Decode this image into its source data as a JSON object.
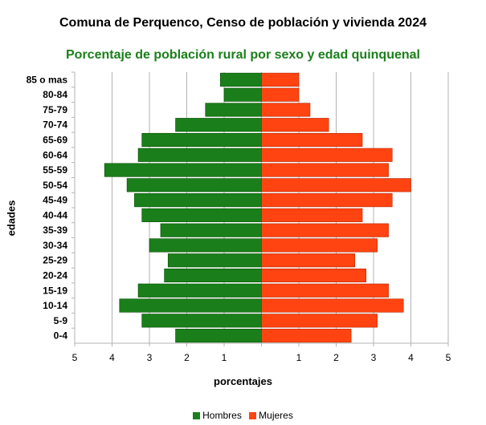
{
  "chart_data": {
    "type": "bar",
    "orientation": "horizontal-population-pyramid",
    "title": "Comuna de Perquenco, Censo de población y vivienda 2024",
    "subtitle": "Porcentaje de población rural por sexo y edad quinquenal",
    "xlabel": "porcentajes",
    "ylabel": "edades",
    "xlim": [
      -5,
      5
    ],
    "x_ticks": [
      "5",
      "4",
      "3",
      "2",
      "1",
      "",
      "1",
      "2",
      "3",
      "4",
      "5"
    ],
    "grid": "vertical",
    "legend_position": "bottom",
    "categories": [
      "85 o mas",
      "80-84",
      "75-79",
      "70-74",
      "65-69",
      "60-64",
      "55-59",
      "50-54",
      "45-49",
      "40-44",
      "35-39",
      "30-34",
      "25-29",
      "20-24",
      "15-19",
      "10-14",
      "5-9",
      "0-4"
    ],
    "series": [
      {
        "name": "Hombres",
        "color": "#1a7f1a",
        "values": [
          1.1,
          1.0,
          1.5,
          2.3,
          3.2,
          3.3,
          4.2,
          3.6,
          3.4,
          3.2,
          2.7,
          3.0,
          2.5,
          2.6,
          3.3,
          3.8,
          3.2,
          2.3
        ]
      },
      {
        "name": "Mujeres",
        "color": "#ff4412",
        "values": [
          1.0,
          1.0,
          1.3,
          1.8,
          2.7,
          3.5,
          3.4,
          4.0,
          3.5,
          2.7,
          3.4,
          3.1,
          2.5,
          2.8,
          3.4,
          3.8,
          3.1,
          2.4
        ]
      }
    ]
  }
}
